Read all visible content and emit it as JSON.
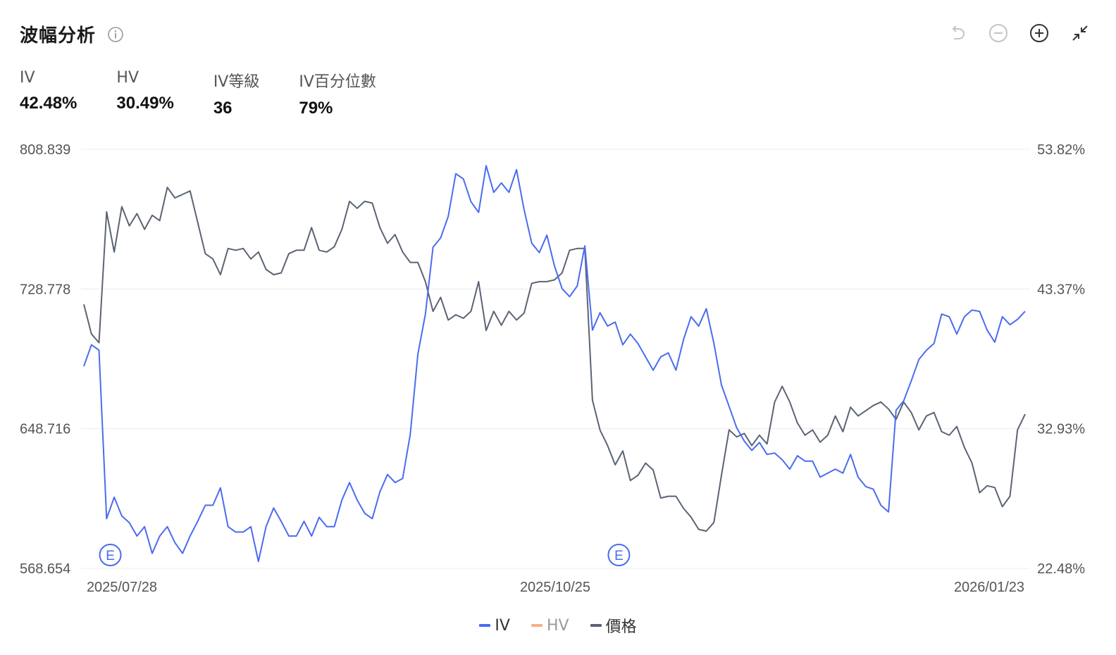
{
  "header": {
    "title": "波幅分析"
  },
  "stats": [
    {
      "label": "IV",
      "value": "42.48%"
    },
    {
      "label": "HV",
      "value": "30.49%"
    },
    {
      "label": "IV等級",
      "value": "36"
    },
    {
      "label": "IV百分位數",
      "value": "79%"
    }
  ],
  "icons": [
    "info-icon",
    "undo-icon",
    "zoom-out-icon",
    "zoom-in-icon",
    "collapse-icon"
  ],
  "colors": {
    "iv": "#4a6cf0",
    "hv": "#f4b183",
    "price": "#5b6474",
    "grid": "#ececec",
    "muted_legend": "#9a9a9a"
  },
  "chart_data": {
    "type": "line",
    "left_axis": {
      "ticks": [
        "808.839",
        "728.778",
        "648.716",
        "568.654"
      ],
      "ylim": [
        568.654,
        808.839
      ]
    },
    "right_axis": {
      "ticks": [
        "53.82%",
        "43.37%",
        "32.93%",
        "22.48%"
      ],
      "ylim": [
        22.48,
        53.82
      ]
    },
    "x_ticks": [
      "2025/07/28",
      "2025/10/25",
      "2026/01/23"
    ],
    "earnings_markers": [
      {
        "label": "E",
        "index": 2
      },
      {
        "label": "E",
        "index": 69
      }
    ],
    "legend": [
      {
        "key": "iv",
        "label": "IV",
        "active": true
      },
      {
        "key": "hv",
        "label": "HV",
        "active": false
      },
      {
        "key": "price",
        "label": "價格",
        "active": true
      }
    ],
    "series": [
      {
        "name": "IV",
        "axis": "right",
        "values": [
          37.6,
          39.2,
          38.8,
          26.2,
          27.8,
          26.4,
          25.9,
          24.9,
          25.6,
          23.6,
          24.9,
          25.6,
          24.4,
          23.6,
          24.9,
          26.0,
          27.2,
          27.2,
          28.5,
          25.6,
          25.2,
          25.2,
          25.6,
          23.0,
          25.6,
          27.0,
          26.0,
          24.9,
          24.9,
          26.0,
          24.9,
          26.3,
          25.6,
          25.6,
          27.6,
          28.9,
          27.6,
          26.6,
          26.2,
          28.2,
          29.5,
          28.9,
          29.2,
          32.5,
          38.5,
          41.5,
          46.5,
          47.2,
          48.8,
          52.0,
          51.6,
          49.9,
          49.1,
          52.6,
          50.6,
          51.3,
          50.6,
          52.3,
          49.3,
          46.8,
          46.1,
          47.4,
          45.1,
          43.4,
          42.8,
          43.6,
          46.6,
          40.3,
          41.6,
          40.6,
          40.9,
          39.2,
          40.0,
          39.3,
          38.3,
          37.3,
          38.3,
          38.6,
          37.3,
          39.6,
          41.3,
          40.6,
          41.9,
          39.3,
          36.2,
          34.6,
          33.0,
          32.0,
          31.3,
          31.9,
          31.0,
          31.1,
          30.6,
          29.9,
          30.9,
          30.5,
          30.5,
          29.3,
          29.6,
          29.9,
          29.6,
          31.0,
          29.3,
          28.6,
          28.4,
          27.2,
          26.7,
          34.3,
          35.0,
          36.5,
          38.1,
          38.8,
          39.3,
          41.5,
          41.3,
          40.0,
          41.3,
          41.8,
          41.7,
          40.3,
          39.4,
          41.3,
          40.7,
          41.1,
          41.7
        ]
      },
      {
        "name": "價格",
        "axis": "left",
        "values": [
          720,
          703,
          698,
          773,
          750,
          776,
          765,
          772,
          763,
          771,
          768,
          787,
          781,
          783,
          785,
          767,
          749,
          746,
          737,
          752,
          751,
          752,
          746,
          750,
          740,
          737,
          738,
          749,
          751,
          751,
          764,
          751,
          750,
          753,
          763,
          779,
          775,
          779,
          778,
          764,
          755,
          760,
          750,
          744,
          744,
          733,
          716,
          724,
          711,
          714,
          712,
          716,
          733,
          705,
          716,
          708,
          716,
          711,
          715,
          732,
          733,
          733,
          734,
          738,
          751,
          752,
          752,
          665,
          648,
          639,
          628,
          636,
          619,
          622,
          629,
          625,
          609,
          610,
          610,
          603,
          598,
          591,
          590,
          595,
          622,
          648,
          644,
          646,
          639,
          645,
          640,
          664,
          673,
          664,
          652,
          645,
          648,
          641,
          645,
          656,
          647,
          661,
          656,
          659,
          662,
          664,
          660,
          654,
          664,
          658,
          648,
          656,
          658,
          647,
          645,
          650,
          638,
          629,
          612,
          616,
          615,
          604,
          610,
          648,
          657
        ]
      }
    ]
  }
}
